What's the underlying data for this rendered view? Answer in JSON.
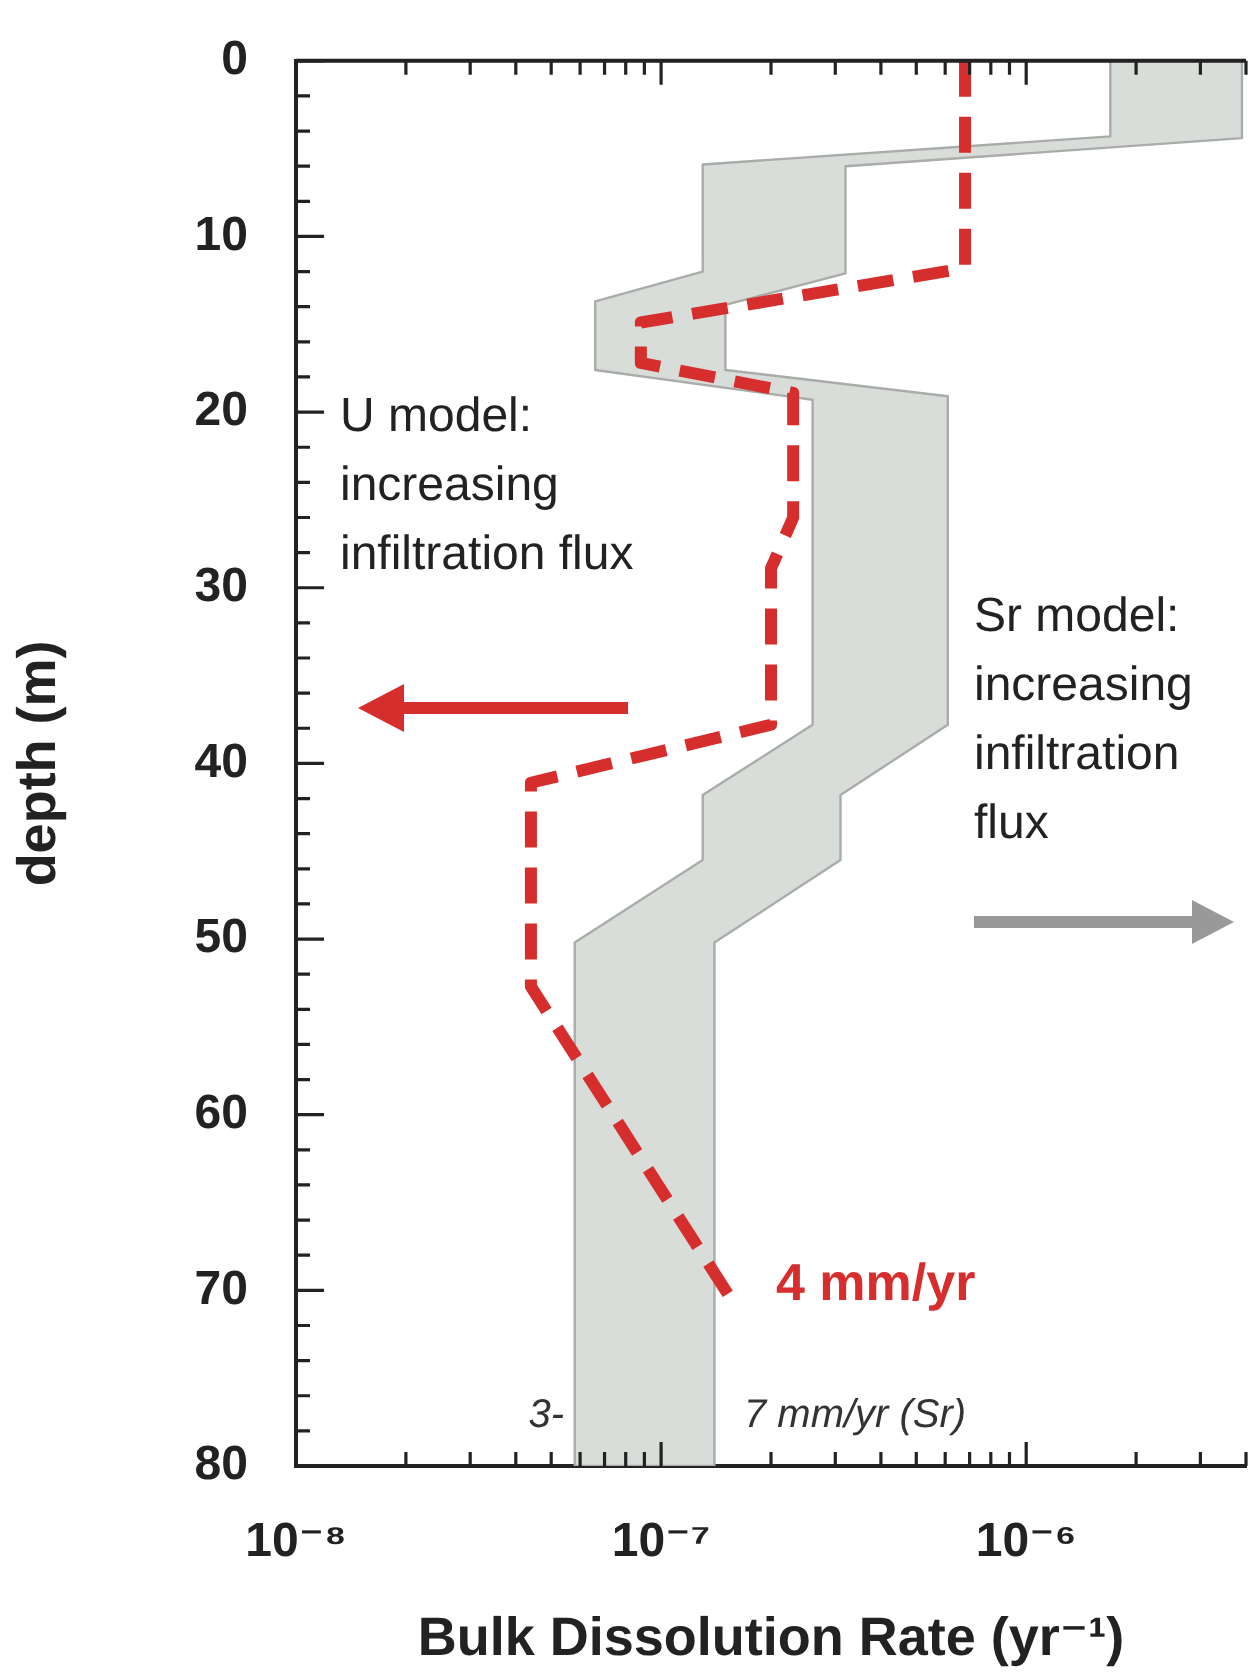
{
  "chart_data": {
    "type": "line",
    "xlabel": "Bulk Dissolution Rate (yr⁻¹)",
    "ylabel": "depth (m)",
    "log": "x",
    "marker": "none",
    "xlim": [
      1e-08,
      4e-06
    ],
    "xticks": [
      {
        "value": 1e-08,
        "label": "10⁻⁸"
      },
      {
        "value": 2e-08,
        "label": null
      },
      {
        "value": 3e-08,
        "label": null
      },
      {
        "value": 4e-08,
        "label": null
      },
      {
        "value": 5e-08,
        "label": null
      },
      {
        "value": 6e-08,
        "label": null
      },
      {
        "value": 7e-08,
        "label": null
      },
      {
        "value": 8e-08,
        "label": null
      },
      {
        "value": 9e-08,
        "label": null
      },
      {
        "value": 1e-07,
        "label": "10⁻⁷"
      },
      {
        "value": 2e-07,
        "label": null
      },
      {
        "value": 3e-07,
        "label": null
      },
      {
        "value": 4e-07,
        "label": null
      },
      {
        "value": 5e-07,
        "label": null
      },
      {
        "value": 6e-07,
        "label": null
      },
      {
        "value": 7e-07,
        "label": null
      },
      {
        "value": 8e-07,
        "label": null
      },
      {
        "value": 9e-07,
        "label": null
      },
      {
        "value": 1e-06,
        "label": "10⁻⁶"
      },
      {
        "value": 2e-06,
        "label": null
      },
      {
        "value": 3e-06,
        "label": null
      },
      {
        "value": 4e-06,
        "label": null
      }
    ],
    "ylim": [
      80,
      0
    ],
    "yticks": [
      0,
      {
        "value": 2,
        "label": null
      },
      {
        "value": 4,
        "label": null
      },
      {
        "value": 6,
        "label": null
      },
      {
        "value": 8,
        "label": null
      },
      10,
      {
        "value": 12,
        "label": null
      },
      {
        "value": 14,
        "label": null
      },
      {
        "value": 16,
        "label": null
      },
      {
        "value": 18,
        "label": null
      },
      20,
      {
        "value": 22,
        "label": null
      },
      {
        "value": 24,
        "label": null
      },
      {
        "value": 26,
        "label": null
      },
      {
        "value": 28,
        "label": null
      },
      30,
      {
        "value": 32,
        "label": null
      },
      {
        "value": 34,
        "label": null
      },
      {
        "value": 36,
        "label": null
      },
      {
        "value": 38,
        "label": null
      },
      40,
      {
        "value": 42,
        "label": null
      },
      {
        "value": 44,
        "label": null
      },
      {
        "value": 46,
        "label": null
      },
      {
        "value": 48,
        "label": null
      },
      50,
      {
        "value": 52,
        "label": null
      },
      {
        "value": 54,
        "label": null
      },
      {
        "value": 56,
        "label": null
      },
      {
        "value": 58,
        "label": null
      },
      60,
      {
        "value": 62,
        "label": null
      },
      {
        "value": 64,
        "label": null
      },
      {
        "value": 66,
        "label": null
      },
      {
        "value": 68,
        "label": null
      },
      70,
      {
        "value": 72,
        "label": null
      },
      {
        "value": 74,
        "label": null
      },
      {
        "value": 76,
        "label": null
      },
      {
        "value": 78,
        "label": null
      },
      80
    ],
    "series": [
      {
        "type": "area",
        "color": "#d9ddd9",
        "x": [
          1.7e-06,
          1.7e-06,
          1.3e-07,
          1.3e-07,
          6.6e-08,
          6.6e-08,
          2.6e-07,
          2.6e-07,
          1.3e-07,
          1.3e-07,
          5.8e-08,
          5.8e-08,
          1.4e-07,
          1.4e-07,
          3.1e-07,
          3.1e-07,
          6.1e-07,
          6.1e-07,
          1.5e-07,
          1.5e-07,
          3.2e-07,
          3.2e-07,
          3.9e-06,
          3.9e-06
        ],
        "values": [
          0,
          4.3,
          5.9,
          12,
          13.7,
          17.6,
          19.3,
          37.8,
          41.8,
          45.5,
          50.2,
          80,
          80,
          50.2,
          45.5,
          41.8,
          37.8,
          19.1,
          17.6,
          13.9,
          12.1,
          6,
          4.4,
          0
        ]
      },
      {
        "type": "line",
        "line_style": "dashed",
        "color": "#d62d2d",
        "x": [
          6.8e-07,
          6.8e-07,
          8.8e-08,
          8.8e-08,
          2.3e-07,
          2.3e-07,
          2e-07,
          2e-07,
          4.4e-08,
          4.4e-08,
          1.6e-07
        ],
        "values": [
          0,
          11.8,
          14.9,
          17.2,
          18.9,
          26,
          28.9,
          37.8,
          41.1,
          52.7,
          70.9
        ]
      }
    ],
    "annotations": [
      "U model: increasing infiltration flux",
      "Sr model: increasing infiltration flux",
      "4 mm/yr",
      "3-",
      "7 mm/yr (Sr)"
    ]
  }
}
